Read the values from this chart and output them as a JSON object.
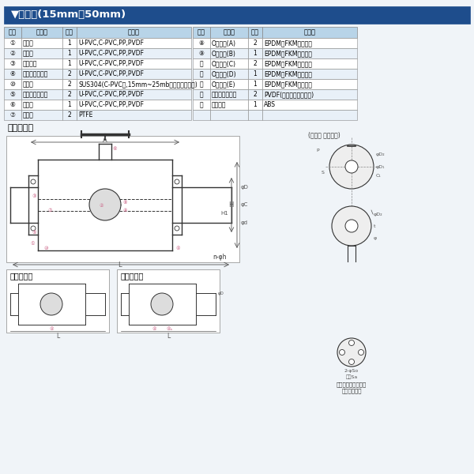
{
  "title": "▼部品表(15mm～50mm)",
  "title_bg": "#1e4d8c",
  "title_text_color": "#ffffff",
  "header_bg": "#b8d4e8",
  "header_text_color": "#000000",
  "row_bg_odd": "#ffffff",
  "row_bg_even": "#e8f0f8",
  "border_color": "#888888",
  "left_table": {
    "headers": [
      "部番",
      "名　称",
      "個数",
      "材　質"
    ],
    "rows": [
      [
        "①",
        "ボディ",
        "1",
        "U-PVC,C-PVC,PP,PVDF"
      ],
      [
        "②",
        "ボール",
        "1",
        "U-PVC,C-PVC,PP,PVDF"
      ],
      [
        "③",
        "ユニオン",
        "1",
        "U-PVC,C-PVC,PP,PVDF"
      ],
      [
        "④",
        "ボディキャップ",
        "2",
        "U-PVC,C-PVC,PP,PVDF"
      ],
      [
        "⑩",
        "リング",
        "2",
        "SUS304(C-PVC製,15mm~25mbじ込み形に使用)"
      ],
      [
        "⑤",
        "キャップナット",
        "2",
        "U-PVC,C-PVC,PP,PVDF"
      ],
      [
        "⑥",
        "ステム",
        "1",
        "U-PVC,C-PVC,PP,PVDF"
      ],
      [
        "⑦",
        "シート",
        "2",
        "PTFE"
      ]
    ]
  },
  "right_table": {
    "headers": [
      "部番",
      "名　称",
      "個数",
      "材　質"
    ],
    "rows": [
      [
        "⑧",
        "Oリング(A)",
        "2",
        "EPDM、FKM、その他"
      ],
      [
        "⑨",
        "Oリング(B)",
        "1",
        "EPDM、FKM、その他"
      ],
      [
        "⑫",
        "Oリング(C)",
        "2",
        "EPDM、FKM、その他"
      ],
      [
        "⑪",
        "Oリング(D)",
        "1",
        "EPDM、FKM、その他"
      ],
      [
        "⑬",
        "Oリング(E)",
        "1",
        "EPDM、FKM、その他"
      ],
      [
        "⑮",
        "ストップリング",
        "2",
        "PVDF(フランジ形に使用)"
      ],
      [
        "⑭",
        "ハンドル",
        "1",
        "ABS"
      ],
      [
        "",
        "",
        "",
        ""
      ]
    ]
  },
  "flange_label": "フランジ形",
  "socket_label": "ソケット形",
  "screw_label": "ねじ込み形",
  "stem_label": "(ステム 詳細組図)",
  "insert_label": "（エンザート金具）\n取付穴部詳細",
  "bg_color": "#f0f4f8",
  "diagram_bg": "#ffffff",
  "line_color": "#333333",
  "pink_color": "#cc6688",
  "blue_dark": "#1e4d8c"
}
